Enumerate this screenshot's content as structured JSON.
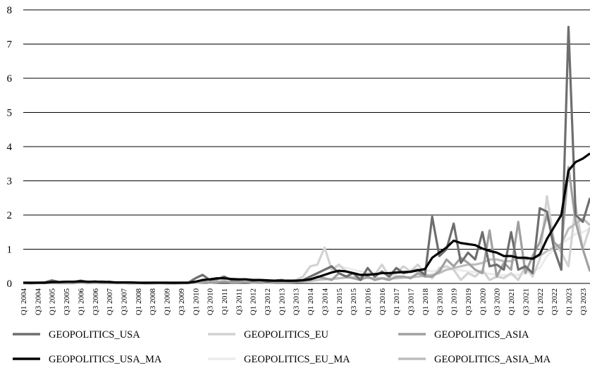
{
  "chart_data": {
    "type": "line",
    "title": "",
    "xlabel": "",
    "ylabel": "",
    "ylim": [
      0,
      8
    ],
    "yticks": [
      0,
      1,
      2,
      3,
      4,
      5,
      6,
      7,
      8
    ],
    "grid": "horizontal",
    "legend_position": "bottom",
    "x": [
      "Q1 2004",
      "Q2 2004",
      "Q3 2004",
      "Q4 2004",
      "Q1 2005",
      "Q2 2005",
      "Q3 2005",
      "Q4 2005",
      "Q1 2006",
      "Q2 2006",
      "Q3 2006",
      "Q4 2006",
      "Q1 2007",
      "Q2 2007",
      "Q3 2007",
      "Q4 2007",
      "Q1 2008",
      "Q2 2008",
      "Q3 2008",
      "Q4 2008",
      "Q1 2009",
      "Q2 2009",
      "Q3 2009",
      "Q4 2009",
      "Q1 2010",
      "Q2 2010",
      "Q3 2010",
      "Q4 2010",
      "Q1 2011",
      "Q2 2011",
      "Q3 2011",
      "Q4 2011",
      "Q1 2012",
      "Q2 2012",
      "Q3 2012",
      "Q4 2012",
      "Q1 2013",
      "Q2 2013",
      "Q3 2013",
      "Q4 2013",
      "Q1 2014",
      "Q2 2014",
      "Q3 2014",
      "Q4 2014",
      "Q1 2015",
      "Q2 2015",
      "Q3 2015",
      "Q4 2015",
      "Q1 2016",
      "Q2 2016",
      "Q3 2016",
      "Q4 2016",
      "Q1 2017",
      "Q2 2017",
      "Q3 2017",
      "Q4 2017",
      "Q1 2018",
      "Q2 2018",
      "Q3 2018",
      "Q4 2018",
      "Q1 2019",
      "Q2 2019",
      "Q3 2019",
      "Q4 2019",
      "Q1 2020",
      "Q2 2020",
      "Q3 2020",
      "Q4 2020",
      "Q1 2021",
      "Q2 2021",
      "Q3 2021",
      "Q4 2021",
      "Q1 2022",
      "Q2 2022",
      "Q3 2022",
      "Q4 2022",
      "Q1 2023",
      "Q2 2023",
      "Q3 2023",
      "Q4 2023"
    ],
    "x_tick_labels": [
      "Q1 2004",
      "Q3 2004",
      "Q1 2005",
      "Q3 2005",
      "Q1 2006",
      "Q3 2006",
      "Q1 2007",
      "Q3 2007",
      "Q1 2008",
      "Q3 2008",
      "Q1 2009",
      "Q3 2009",
      "Q1 2010",
      "Q3 2010",
      "Q1 2011",
      "Q3 2011",
      "Q1 2012",
      "Q3 2012",
      "Q1 2013",
      "Q3 2013",
      "Q1 2014",
      "Q3 2014",
      "Q1 2015",
      "Q3 2015",
      "Q1 2016",
      "Q3 2016",
      "Q1 2017",
      "Q3 2017",
      "Q1 2018",
      "Q3 2018",
      "Q1 2019",
      "Q3 2019",
      "Q1 2020",
      "Q3 2020",
      "Q1 2021",
      "Q3 2021",
      "Q1 2022",
      "Q3 2022",
      "Q1 2023",
      "Q3 2023"
    ],
    "series": [
      {
        "name": "GEOPOLITICS_USA",
        "color": "#6e6e6e",
        "width": 3.2,
        "values": [
          0.02,
          0.01,
          0.02,
          0.03,
          0.09,
          0.04,
          0.05,
          0.04,
          0.08,
          0.04,
          0.06,
          0.03,
          0.05,
          0.02,
          0.03,
          0.02,
          0.02,
          0.01,
          0.02,
          0.02,
          0.02,
          0.01,
          0.02,
          0.02,
          0.15,
          0.25,
          0.1,
          0.12,
          0.2,
          0.1,
          0.1,
          0.12,
          0.08,
          0.1,
          0.05,
          0.08,
          0.1,
          0.06,
          0.08,
          0.1,
          0.2,
          0.3,
          0.4,
          0.5,
          0.3,
          0.2,
          0.3,
          0.1,
          0.45,
          0.2,
          0.35,
          0.2,
          0.45,
          0.3,
          0.35,
          0.4,
          0.25,
          1.95,
          0.8,
          1.0,
          1.75,
          0.6,
          0.9,
          0.7,
          1.5,
          0.5,
          0.55,
          0.4,
          1.5,
          0.4,
          0.5,
          0.3,
          2.2,
          2.1,
          1.0,
          0.4,
          7.5,
          2.0,
          1.8,
          2.5
        ]
      },
      {
        "name": "GEOPOLITICS_EU",
        "color": "#d2d2d2",
        "width": 3.2,
        "values": [
          0.01,
          0.0,
          0.01,
          0.02,
          0.03,
          0.01,
          0.02,
          0.02,
          0.05,
          0.02,
          0.03,
          0.02,
          0.02,
          0.01,
          0.02,
          0.01,
          0.01,
          0.0,
          0.01,
          0.01,
          0.01,
          0.0,
          0.01,
          0.01,
          0.05,
          0.08,
          0.04,
          0.05,
          0.08,
          0.05,
          0.06,
          0.05,
          0.04,
          0.05,
          0.03,
          0.04,
          0.05,
          0.04,
          0.1,
          0.2,
          0.5,
          0.55,
          1.05,
          0.4,
          0.55,
          0.35,
          0.3,
          0.2,
          0.3,
          0.25,
          0.55,
          0.2,
          0.3,
          0.5,
          0.35,
          0.55,
          0.3,
          0.15,
          0.45,
          0.5,
          0.4,
          0.1,
          0.3,
          0.2,
          0.4,
          0.1,
          0.2,
          0.15,
          0.3,
          0.1,
          0.5,
          0.2,
          0.7,
          2.55,
          1.2,
          0.9,
          0.5,
          2.3,
          1.0,
          1.65
        ]
      },
      {
        "name": "GEOPOLITICS_ASIA",
        "color": "#a0a0a0",
        "width": 3.2,
        "values": [
          0.01,
          0.0,
          0.01,
          0.01,
          0.02,
          0.01,
          0.01,
          0.01,
          0.03,
          0.01,
          0.02,
          0.01,
          0.01,
          0.01,
          0.01,
          0.0,
          0.01,
          0.0,
          0.0,
          0.01,
          0.0,
          0.0,
          0.01,
          0.01,
          0.03,
          0.05,
          0.02,
          0.03,
          0.05,
          0.03,
          0.03,
          0.04,
          0.02,
          0.03,
          0.02,
          0.03,
          0.04,
          0.03,
          0.05,
          0.1,
          0.1,
          0.2,
          0.15,
          0.1,
          0.3,
          0.2,
          0.15,
          0.1,
          0.2,
          0.1,
          0.15,
          0.1,
          0.2,
          0.2,
          0.15,
          0.3,
          0.2,
          0.2,
          0.35,
          0.7,
          0.5,
          0.75,
          0.6,
          0.4,
          0.3,
          1.55,
          0.2,
          0.6,
          0.4,
          1.8,
          0.3,
          0.8,
          1.2,
          2.0,
          1.2,
          1.0,
          3.4,
          1.8,
          1.0,
          0.35
        ]
      },
      {
        "name": "GEOPOLITICS_USA_MA",
        "color": "#000000",
        "width": 3.2,
        "values": [
          0.02,
          0.02,
          0.02,
          0.02,
          0.04,
          0.04,
          0.05,
          0.05,
          0.06,
          0.05,
          0.05,
          0.05,
          0.04,
          0.03,
          0.03,
          0.03,
          0.02,
          0.02,
          0.02,
          0.02,
          0.02,
          0.02,
          0.02,
          0.02,
          0.05,
          0.1,
          0.12,
          0.15,
          0.15,
          0.13,
          0.12,
          0.12,
          0.1,
          0.1,
          0.09,
          0.08,
          0.08,
          0.08,
          0.08,
          0.09,
          0.12,
          0.18,
          0.25,
          0.32,
          0.37,
          0.35,
          0.3,
          0.25,
          0.25,
          0.27,
          0.3,
          0.3,
          0.32,
          0.33,
          0.34,
          0.38,
          0.42,
          0.75,
          0.9,
          1.05,
          1.25,
          1.18,
          1.15,
          1.12,
          1.02,
          0.95,
          0.9,
          0.8,
          0.8,
          0.75,
          0.75,
          0.72,
          0.85,
          1.3,
          1.65,
          2.0,
          3.3,
          3.55,
          3.65,
          3.8
        ]
      },
      {
        "name": "GEOPOLITICS_EU_MA",
        "color": "#ececec",
        "width": 3.2,
        "values": [
          0.01,
          0.01,
          0.01,
          0.01,
          0.02,
          0.02,
          0.02,
          0.02,
          0.03,
          0.03,
          0.03,
          0.03,
          0.02,
          0.02,
          0.02,
          0.01,
          0.01,
          0.01,
          0.01,
          0.01,
          0.01,
          0.01,
          0.01,
          0.01,
          0.02,
          0.04,
          0.05,
          0.06,
          0.06,
          0.06,
          0.06,
          0.06,
          0.05,
          0.05,
          0.05,
          0.04,
          0.04,
          0.04,
          0.05,
          0.08,
          0.15,
          0.25,
          0.4,
          0.45,
          0.5,
          0.45,
          0.4,
          0.35,
          0.3,
          0.28,
          0.3,
          0.3,
          0.3,
          0.35,
          0.38,
          0.4,
          0.38,
          0.35,
          0.38,
          0.4,
          0.42,
          0.38,
          0.35,
          0.32,
          0.3,
          0.28,
          0.25,
          0.24,
          0.25,
          0.25,
          0.3,
          0.35,
          0.45,
          0.8,
          1.0,
          1.15,
          1.3,
          1.45,
          1.5,
          1.6
        ]
      },
      {
        "name": "GEOPOLITICS_ASIA_MA",
        "color": "#bebebe",
        "width": 3.2,
        "values": [
          0.01,
          0.01,
          0.01,
          0.01,
          0.01,
          0.01,
          0.01,
          0.01,
          0.02,
          0.02,
          0.02,
          0.02,
          0.01,
          0.01,
          0.01,
          0.01,
          0.01,
          0.01,
          0.01,
          0.01,
          0.0,
          0.0,
          0.0,
          0.01,
          0.02,
          0.03,
          0.03,
          0.04,
          0.04,
          0.04,
          0.04,
          0.04,
          0.03,
          0.03,
          0.03,
          0.03,
          0.03,
          0.03,
          0.04,
          0.05,
          0.07,
          0.1,
          0.12,
          0.13,
          0.15,
          0.17,
          0.17,
          0.16,
          0.16,
          0.15,
          0.15,
          0.14,
          0.15,
          0.17,
          0.18,
          0.2,
          0.22,
          0.25,
          0.3,
          0.4,
          0.45,
          0.5,
          0.55,
          0.55,
          0.6,
          0.7,
          0.7,
          0.65,
          0.65,
          0.75,
          0.7,
          0.75,
          0.8,
          0.95,
          1.05,
          1.15,
          1.6,
          1.75,
          1.9,
          1.7
        ]
      }
    ]
  }
}
